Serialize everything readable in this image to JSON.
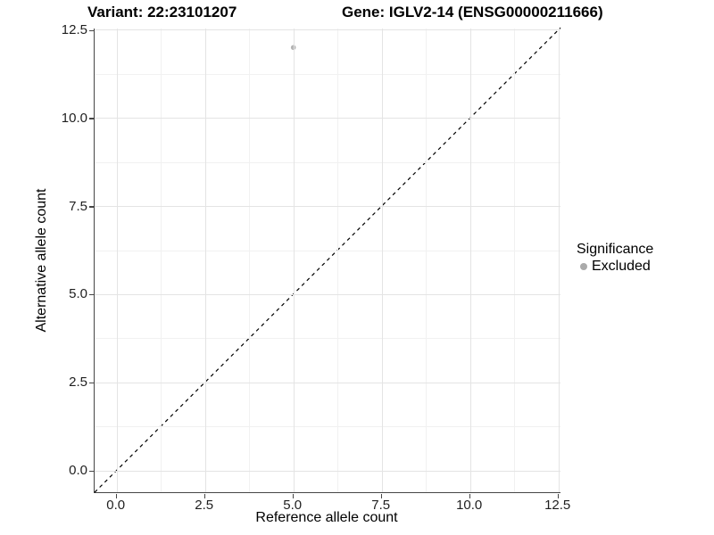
{
  "titles": {
    "variant": "Variant: 22:23101207",
    "gene": "Gene: IGLV2-14 (ENSG00000211666)"
  },
  "chart_data": {
    "type": "scatter",
    "title_left": "Variant: 22:23101207",
    "title_right": "Gene: IGLV2-14 (ENSG00000211666)",
    "xlabel": "Reference allele count",
    "ylabel": "Alternative allele count",
    "xlim": [
      -0.63,
      13.18
    ],
    "ylim": [
      -0.63,
      12.55
    ],
    "x_ticks": [
      {
        "value": 0,
        "label": "0.0"
      },
      {
        "value": 2.5,
        "label": "2.5"
      },
      {
        "value": 5,
        "label": "5.0"
      },
      {
        "value": 7.5,
        "label": "7.5"
      },
      {
        "value": 10,
        "label": "10.0"
      },
      {
        "value": 12.5,
        "label": "12.5"
      }
    ],
    "y_ticks": [
      {
        "value": 0,
        "label": "0.0"
      },
      {
        "value": 2.5,
        "label": "2.5"
      },
      {
        "value": 5,
        "label": "5.0"
      },
      {
        "value": 7.5,
        "label": "7.5"
      },
      {
        "value": 10,
        "label": "10.0"
      },
      {
        "value": 12.5,
        "label": "12.5"
      }
    ],
    "minor_ticks": [
      1.25,
      3.75,
      6.25,
      8.75,
      11.25
    ],
    "grid": "major-and-minor",
    "points": [
      {
        "x": 5,
        "y": 12,
        "series": "Excluded",
        "color": "#b5b5b5"
      }
    ],
    "reference_line": {
      "slope": 1,
      "intercept": 0,
      "style": "dashed",
      "color": "#000000"
    },
    "legend": {
      "position": "right",
      "title": "Significance",
      "entries": [
        {
          "label": "Excluded",
          "color": "#aaaaaa"
        }
      ]
    },
    "colors": {
      "point": "#b5b5b5",
      "grid_major": "#e4e4e4",
      "grid_minor": "#f1f1f1",
      "axis_line": "#464646",
      "dashed_line": "#000000"
    }
  }
}
